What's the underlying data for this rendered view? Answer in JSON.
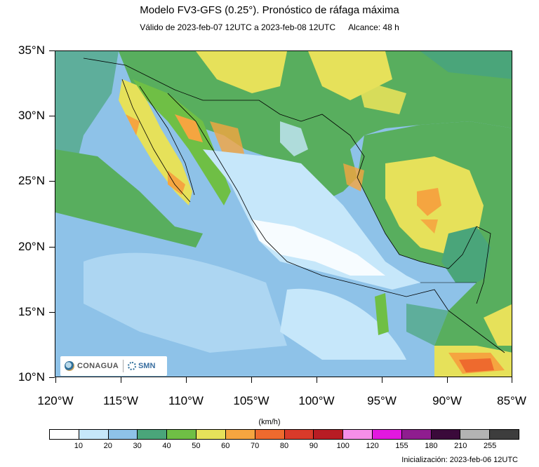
{
  "header": {
    "title": "Modelo FV3-GFS (0.25°). Pronóstico de ráfaga máxima",
    "valid": "Válido de 2023-feb-07 12UTC a 2023-feb-08 12UTC",
    "range": "Alcance: 48 h"
  },
  "axes": {
    "lat_labels": [
      "35°N",
      "30°N",
      "25°N",
      "20°N",
      "15°N",
      "10°N"
    ],
    "lon_labels": [
      "120°W",
      "115°W",
      "110°W",
      "105°W",
      "100°W",
      "95°W",
      "90°W",
      "85°W"
    ]
  },
  "map": {
    "extent": {
      "lon_min": -120,
      "lon_max": -85,
      "lat_min": 10,
      "lat_max": 35
    },
    "field": "ráfaga máxima",
    "ocean_color": "#8ec2e8",
    "land_color": "#58ae5e"
  },
  "logos": {
    "left": "CONAGUA",
    "right": "SMN"
  },
  "colorbar": {
    "units": "(km/h)",
    "ticks": [
      "10",
      "20",
      "30",
      "40",
      "50",
      "60",
      "70",
      "80",
      "90",
      "100",
      "120",
      "155",
      "180",
      "210",
      "255"
    ],
    "colors": [
      "#ffffff",
      "#c6e7fa",
      "#8ec2e8",
      "#4aa57a",
      "#6fbf45",
      "#e6e15a",
      "#f5a540",
      "#ee6a2e",
      "#d93a2a",
      "#b81c24",
      "#f58fe8",
      "#e218e0",
      "#8f1d8f",
      "#3a0a3a",
      "#b3b3b3",
      "#3d3d3d"
    ]
  },
  "footer": {
    "init": "Inicialización: 2023-feb-06 12UTC"
  }
}
